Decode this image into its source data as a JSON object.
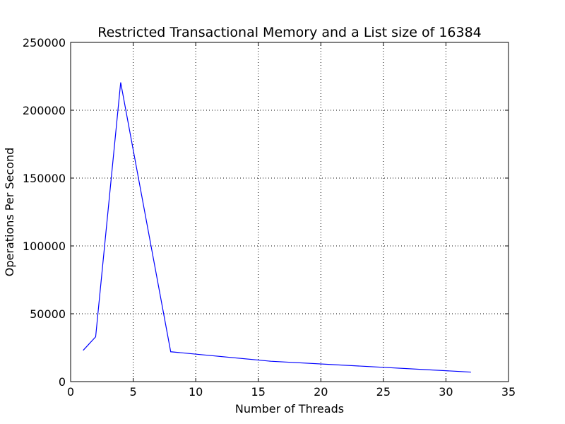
{
  "chart_data": {
    "type": "line",
    "title": "Restricted Transactional Memory and a List size of 16384",
    "xlabel": "Number of Threads",
    "ylabel": "Operations Per Second",
    "xlim": [
      0,
      35
    ],
    "ylim": [
      0,
      250000
    ],
    "xticks": [
      0,
      5,
      10,
      15,
      20,
      25,
      30,
      35
    ],
    "yticks": [
      0,
      50000,
      100000,
      150000,
      200000,
      250000
    ],
    "xtick_labels": [
      "0",
      "5",
      "10",
      "15",
      "20",
      "25",
      "30",
      "35"
    ],
    "ytick_labels": [
      "0",
      "50000",
      "100000",
      "150000",
      "200000",
      "250000"
    ],
    "grid": true,
    "series": [
      {
        "color": "#0000ff",
        "x": [
          1,
          2,
          4,
          8,
          16,
          32
        ],
        "y": [
          23000,
          33000,
          220500,
          22000,
          15000,
          7000
        ]
      }
    ]
  }
}
